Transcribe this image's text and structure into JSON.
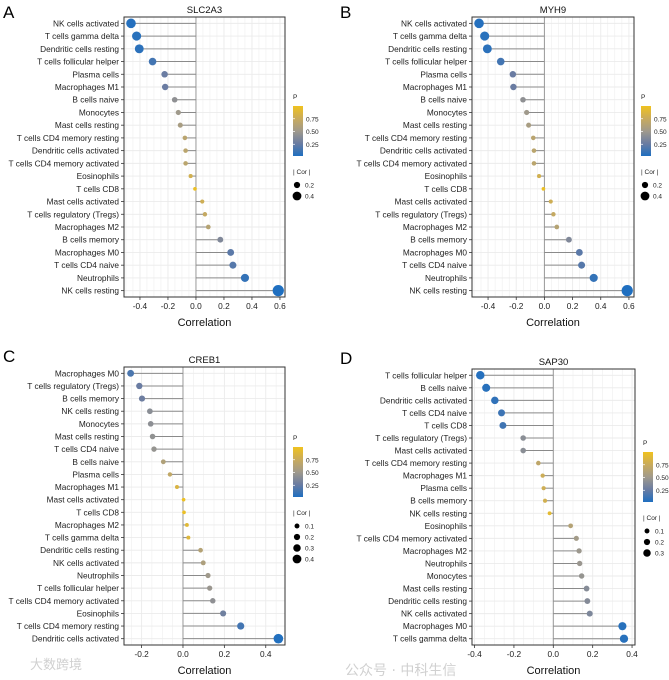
{
  "colors": {
    "p_low": "#1f6fc0",
    "p_q1": "#6a7ca2",
    "p_mid": "#a09a8c",
    "p_q3": "#c9ab5c",
    "p_high": "#f0c21e",
    "stem": "#8a8a8a",
    "grid": "#ebebeb"
  },
  "watermarks": {
    "bottom_left": "大数跨境",
    "bottom_right": "公众号 · 中科生信"
  },
  "chart_data": [
    {
      "panel": "A",
      "type": "lollipop",
      "title": "SLC2A3",
      "xlabel": "Correlation",
      "xlim": [
        -0.514,
        0.636
      ],
      "xticks": [
        "-0.4",
        "-0.2",
        "0.0",
        "0.2",
        "0.4",
        "0.6"
      ],
      "xtick_values": [
        -0.4,
        -0.2,
        0,
        0.2,
        0.4,
        0.6
      ],
      "legend_p_title": "P",
      "legend_p_ticks": [
        "0.25",
        "0.50",
        "0.75"
      ],
      "legend_cor_title": "| Cor |",
      "legend_cor_values": [
        "0.2",
        "0.4"
      ],
      "categories": [
        "NK cells activated",
        "T cells gamma delta",
        "Dendritic cells resting",
        "T cells follicular helper",
        "Plasma cells",
        "Macrophages M1",
        "B cells naive",
        "Monocytes",
        "Mast cells resting",
        "T cells CD4 memory resting",
        "Dendritic cells activated",
        "T cells CD4 memory activated",
        "Eosinophils",
        "T cells CD8",
        "Mast cells activated",
        "T cells regulatory (Tregs)",
        "Macrophages M2",
        "B cells memory",
        "Macrophages M0",
        "T cells CD4 naive",
        "Neutrophils",
        "NK cells resting"
      ],
      "values": [
        -0.464,
        -0.424,
        -0.405,
        -0.31,
        -0.224,
        -0.22,
        -0.152,
        -0.126,
        -0.112,
        -0.079,
        -0.074,
        -0.074,
        -0.038,
        -0.007,
        0.045,
        0.064,
        0.088,
        0.174,
        0.248,
        0.264,
        0.35,
        0.588
      ],
      "p": [
        0.02,
        0.03,
        0.04,
        0.12,
        0.25,
        0.25,
        0.42,
        0.5,
        0.55,
        0.65,
        0.66,
        0.66,
        0.8,
        0.97,
        0.78,
        0.72,
        0.63,
        0.35,
        0.2,
        0.18,
        0.07,
        0.001
      ]
    },
    {
      "panel": "B",
      "type": "lollipop",
      "title": "MYH9",
      "xlabel": "Correlation",
      "xlim": [
        -0.514,
        0.636
      ],
      "xticks": [
        "-0.4",
        "-0.2",
        "0.0",
        "0.2",
        "0.4",
        "0.6"
      ],
      "xtick_values": [
        -0.4,
        -0.2,
        0,
        0.2,
        0.4,
        0.6
      ],
      "legend_p_title": "P",
      "legend_p_ticks": [
        "0.25",
        "0.50",
        "0.75"
      ],
      "legend_cor_title": "| Cor |",
      "legend_cor_values": [
        "0.2",
        "0.4"
      ],
      "categories": [
        "NK cells activated",
        "T cells gamma delta",
        "Dendritic cells resting",
        "T cells follicular helper",
        "Plasma cells",
        "Macrophages M1",
        "B cells naive",
        "Monocytes",
        "Mast cells resting",
        "T cells CD4 memory resting",
        "Dendritic cells activated",
        "T cells CD4 memory activated",
        "Eosinophils",
        "T cells CD8",
        "Mast cells activated",
        "T cells regulatory (Tregs)",
        "Macrophages M2",
        "B cells memory",
        "Macrophages M0",
        "T cells CD4 naive",
        "Neutrophils",
        "NK cells resting"
      ],
      "values": [
        -0.464,
        -0.424,
        -0.405,
        -0.31,
        -0.224,
        -0.22,
        -0.152,
        -0.126,
        -0.112,
        -0.079,
        -0.074,
        -0.074,
        -0.038,
        -0.007,
        0.045,
        0.064,
        0.088,
        0.174,
        0.248,
        0.264,
        0.35,
        0.588
      ],
      "p": [
        0.02,
        0.03,
        0.04,
        0.12,
        0.25,
        0.25,
        0.42,
        0.5,
        0.55,
        0.65,
        0.66,
        0.66,
        0.8,
        0.97,
        0.78,
        0.72,
        0.63,
        0.35,
        0.2,
        0.18,
        0.07,
        0.001
      ]
    },
    {
      "panel": "C",
      "type": "lollipop",
      "title": "CREB1",
      "xlabel": "Correlation",
      "xlim": [
        -0.285,
        0.493
      ],
      "xticks": [
        "-0.2",
        "0.0",
        "0.2",
        "0.4"
      ],
      "xtick_values": [
        -0.2,
        0,
        0.2,
        0.4
      ],
      "legend_p_title": "P",
      "legend_p_ticks": [
        "0.25",
        "0.50",
        "0.75"
      ],
      "legend_cor_title": "| Cor |",
      "legend_cor_values": [
        "0.1",
        "0.2",
        "0.3",
        "0.4"
      ],
      "categories": [
        "Macrophages M0",
        "T cells regulatory (Tregs)",
        "B cells memory",
        "NK cells resting",
        "Monocytes",
        "Mast cells resting",
        "T cells CD4 naive",
        "B cells naive",
        "Plasma cells",
        "Macrophages M1",
        "Mast cells activated",
        "T cells CD8",
        "Macrophages M2",
        "T cells gamma delta",
        "Dendritic cells resting",
        "NK cells activated",
        "Neutrophils",
        "T cells follicular helper",
        "T cells CD4 memory activated",
        "Eosinophils",
        "T cells CD4 memory resting",
        "Dendritic cells activated"
      ],
      "values": [
        -0.253,
        -0.211,
        -0.198,
        -0.16,
        -0.156,
        -0.147,
        -0.14,
        -0.095,
        -0.063,
        -0.029,
        0.003,
        0.005,
        0.019,
        0.026,
        0.085,
        0.098,
        0.121,
        0.129,
        0.144,
        0.194,
        0.279,
        0.461
      ],
      "p": [
        0.15,
        0.25,
        0.27,
        0.4,
        0.41,
        0.43,
        0.45,
        0.6,
        0.7,
        0.85,
        0.98,
        0.97,
        0.9,
        0.88,
        0.62,
        0.58,
        0.5,
        0.47,
        0.42,
        0.28,
        0.12,
        0.01
      ]
    },
    {
      "panel": "D",
      "type": "lollipop",
      "title": "SAP30",
      "xlabel": "Correlation",
      "xlim": [
        -0.413,
        0.415
      ],
      "xticks": [
        "-0.4",
        "-0.2",
        "0.0",
        "0.2",
        "0.4"
      ],
      "xtick_values": [
        -0.4,
        -0.2,
        0,
        0.2,
        0.4
      ],
      "legend_p_title": "P",
      "legend_p_ticks": [
        "0.25",
        "0.50",
        "0.75"
      ],
      "legend_cor_title": "| Cor |",
      "legend_cor_values": [
        "0.1",
        "0.2",
        "0.3"
      ],
      "categories": [
        "T cells follicular helper",
        "B cells naive",
        "Dendritic cells activated",
        "T cells CD4 naive",
        "T cells CD8",
        "T cells regulatory (Tregs)",
        "Mast cells activated",
        "T cells CD4 memory resting",
        "Macrophages M1",
        "Plasma cells",
        "B cells memory",
        "NK cells resting",
        "Eosinophils",
        "T cells CD4 memory activated",
        "Macrophages M2",
        "Neutrophils",
        "Monocytes",
        "Mast cells resting",
        "Dendritic cells resting",
        "NK cells activated",
        "Macrophages M0",
        "T cells gamma delta"
      ],
      "values": [
        -0.371,
        -0.341,
        -0.297,
        -0.263,
        -0.256,
        -0.153,
        -0.153,
        -0.076,
        -0.054,
        -0.049,
        -0.042,
        -0.019,
        0.088,
        0.117,
        0.131,
        0.134,
        0.144,
        0.169,
        0.173,
        0.185,
        0.351,
        0.359
      ],
      "p": [
        0.02,
        0.03,
        0.06,
        0.1,
        0.11,
        0.4,
        0.4,
        0.68,
        0.77,
        0.78,
        0.8,
        0.92,
        0.62,
        0.52,
        0.48,
        0.47,
        0.45,
        0.38,
        0.37,
        0.34,
        0.03,
        0.03
      ]
    }
  ]
}
